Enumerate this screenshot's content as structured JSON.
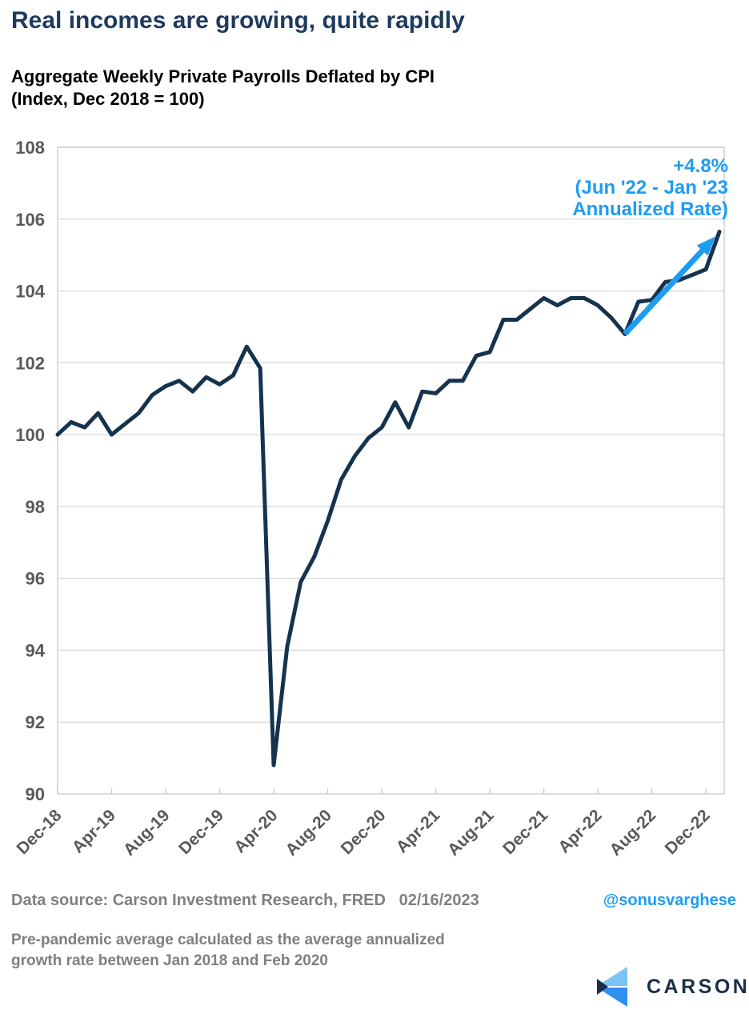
{
  "title": "Real incomes are growing, quite rapidly",
  "subtitle_line1": "Aggregate Weekly Private Payrolls Deflated by CPI",
  "subtitle_line2": "(Index, Dec 2018 = 100)",
  "annotation": {
    "line1": "+4.8%",
    "line2": "(Jun '22 - Jan '23",
    "line3": "Annualized Rate)"
  },
  "footer": {
    "source": "Data source: Carson Investment Research, FRED   02/16/2023",
    "handle": "@sonusvarghese",
    "note_line1": "Pre-pandemic average calculated as the average annualized",
    "note_line2": "growth rate between Jan 2018 and Feb 2020",
    "logo_text": "CARSON"
  },
  "colors": {
    "title_navy": "#1E3A5F",
    "line_navy": "#16334E",
    "accent_blue": "#1E9CF4",
    "axis_gray": "#595959",
    "footer_gray": "#7F7F7F",
    "gridline": "#DADADA",
    "plot_border": "#C8C8C8",
    "logo_light_blue": "#7CC4F5",
    "logo_mid_blue": "#2E90F0",
    "logo_navy": "#1B2E4A"
  },
  "chart_data": {
    "type": "line",
    "title": "Aggregate Weekly Private Payrolls Deflated by CPI (Index, Dec 2018 = 100)",
    "xlabel": "",
    "ylabel": "",
    "ylim": [
      90,
      108
    ],
    "y_ticks": [
      90,
      92,
      94,
      96,
      98,
      100,
      102,
      104,
      106,
      108
    ],
    "grid": "horizontal",
    "legend": "none",
    "x": [
      "Dec-18",
      "Jan-19",
      "Feb-19",
      "Mar-19",
      "Apr-19",
      "May-19",
      "Jun-19",
      "Jul-19",
      "Aug-19",
      "Sep-19",
      "Oct-19",
      "Nov-19",
      "Dec-19",
      "Jan-20",
      "Feb-20",
      "Mar-20",
      "Apr-20",
      "May-20",
      "Jun-20",
      "Jul-20",
      "Aug-20",
      "Sep-20",
      "Oct-20",
      "Nov-20",
      "Dec-20",
      "Jan-21",
      "Feb-21",
      "Mar-21",
      "Apr-21",
      "May-21",
      "Jun-21",
      "Jul-21",
      "Aug-21",
      "Sep-21",
      "Oct-21",
      "Nov-21",
      "Dec-21",
      "Jan-22",
      "Feb-22",
      "Mar-22",
      "Apr-22",
      "May-22",
      "Jun-22",
      "Jul-22",
      "Aug-22",
      "Sep-22",
      "Oct-22",
      "Nov-22",
      "Dec-22",
      "Jan-23"
    ],
    "x_tick_labels": [
      "Dec-18",
      "Apr-19",
      "Aug-19",
      "Dec-19",
      "Apr-20",
      "Aug-20",
      "Dec-20",
      "Apr-21",
      "Aug-21",
      "Dec-21",
      "Apr-22",
      "Aug-22",
      "Dec-22"
    ],
    "x_tick_month_index": [
      0,
      4,
      8,
      12,
      16,
      20,
      24,
      28,
      32,
      36,
      40,
      44,
      48
    ],
    "series": [
      {
        "name": "Aggregate Weekly Private Payrolls Deflated by CPI",
        "values": [
          100.0,
          100.35,
          100.2,
          100.6,
          100.0,
          100.3,
          100.6,
          101.1,
          101.35,
          101.5,
          101.2,
          101.6,
          101.4,
          101.65,
          102.45,
          101.85,
          90.8,
          94.1,
          95.9,
          96.6,
          97.6,
          98.75,
          99.4,
          99.9,
          100.2,
          100.9,
          100.2,
          101.2,
          101.15,
          101.5,
          101.5,
          102.2,
          102.3,
          103.2,
          103.2,
          103.5,
          103.8,
          103.6,
          103.8,
          103.8,
          103.6,
          103.25,
          102.8,
          103.7,
          103.75,
          104.25,
          104.3,
          104.45,
          104.6,
          105.65
        ]
      }
    ],
    "annotation_arrow": {
      "from_month_index": 42,
      "from_value": 102.8,
      "to_month_index": 49,
      "to_value": 105.65,
      "label": "+4.8% (Jun '22 - Jan '23 Annualized Rate)"
    }
  }
}
